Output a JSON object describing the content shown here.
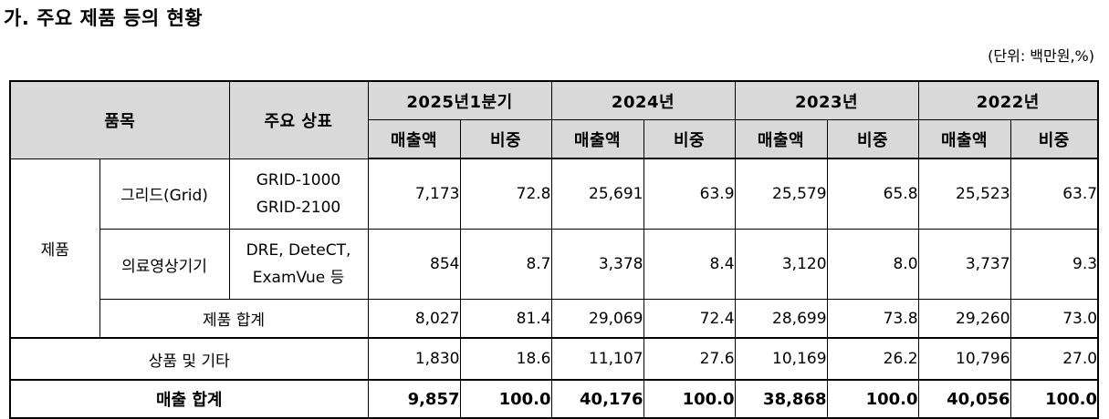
{
  "title": "가. 주요 제품 등의 현황",
  "unit_note": "(단위: 백만원,%)",
  "header": {
    "item": "품목",
    "brand": "주요 상표",
    "periods": [
      "2025년1분기",
      "2024년",
      "2023년",
      "2022년"
    ],
    "sales": "매출액",
    "ratio": "비중"
  },
  "rows": {
    "product_group": "제품",
    "grid": {
      "name": "그리드(Grid)",
      "brand_lines": [
        "GRID-1000",
        "GRID-2100"
      ],
      "values": [
        "7,173",
        "72.8",
        "25,691",
        "63.9",
        "25,579",
        "65.8",
        "25,523",
        "63.7"
      ]
    },
    "medical": {
      "name": "의료영상기기",
      "brand_lines": [
        "DRE, DeteCT,",
        "ExamVue 등"
      ],
      "values": [
        "854",
        "8.7",
        "3,378",
        "8.4",
        "3,120",
        "8.0",
        "3,737",
        "9.3"
      ]
    },
    "product_total": {
      "name": "제품 합계",
      "values": [
        "8,027",
        "81.4",
        "29,069",
        "72.4",
        "28,699",
        "73.8",
        "29,260",
        "73.0"
      ]
    },
    "goods_other": {
      "name": "상품 및 기타",
      "values": [
        "1,830",
        "18.6",
        "11,107",
        "27.6",
        "10,169",
        "26.2",
        "10,796",
        "27.0"
      ]
    },
    "sales_total": {
      "name": "매출 합계",
      "values": [
        "9,857",
        "100.0",
        "40,176",
        "100.0",
        "38,868",
        "100.0",
        "40,056",
        "100.0"
      ]
    }
  }
}
